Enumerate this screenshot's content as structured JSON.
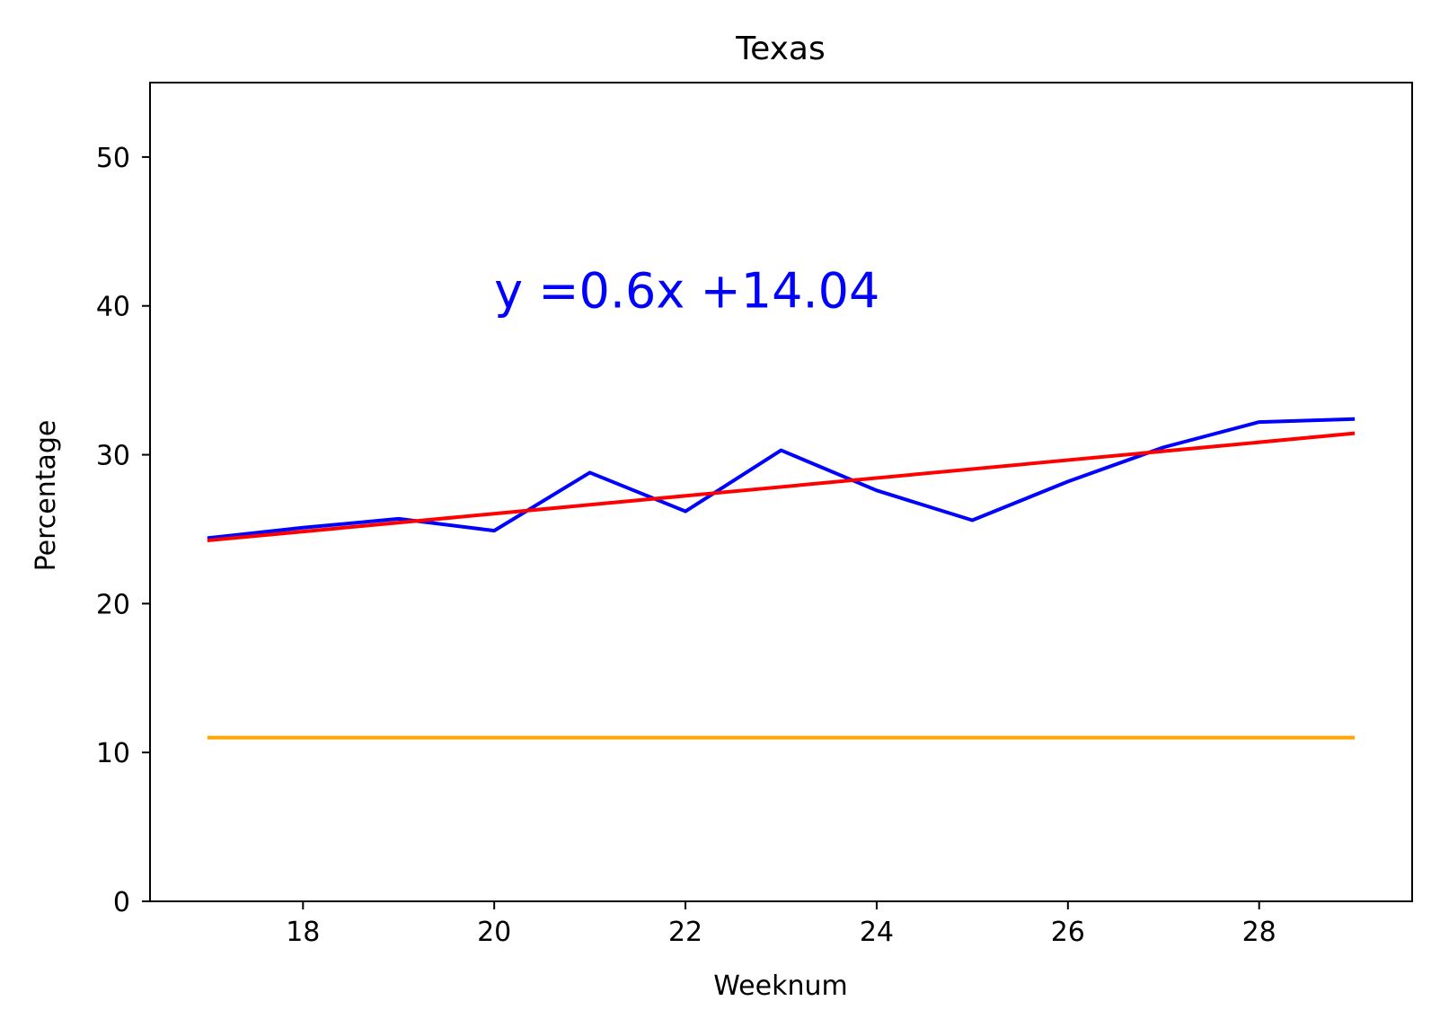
{
  "chart_data": {
    "type": "line",
    "title": "Texas",
    "xlabel": "Weeknum",
    "ylabel": "Percentage",
    "xlim": [
      16.4,
      29.6
    ],
    "ylim": [
      0,
      55
    ],
    "xticks": [
      18,
      20,
      22,
      24,
      26,
      28
    ],
    "yticks": [
      0,
      10,
      20,
      30,
      40,
      50
    ],
    "grid": false,
    "legend": "none",
    "annotation": {
      "text": "y =0.6x +14.04",
      "x": 20,
      "y": 40,
      "color": "#0000ff"
    },
    "series": [
      {
        "color": "#0000ff",
        "x": [
          17,
          18,
          19,
          20,
          21,
          22,
          23,
          24,
          25,
          26,
          27,
          28,
          29
        ],
        "values": [
          24.4,
          25.1,
          25.7,
          24.9,
          28.8,
          26.2,
          30.3,
          27.6,
          25.6,
          28.2,
          30.5,
          32.2,
          32.4
        ]
      },
      {
        "color": "#ff0000",
        "x": [
          17,
          29
        ],
        "values": [
          24.24,
          31.44
        ]
      },
      {
        "color": "#ffa500",
        "x": [
          17,
          29
        ],
        "values": [
          11,
          11
        ]
      }
    ]
  }
}
